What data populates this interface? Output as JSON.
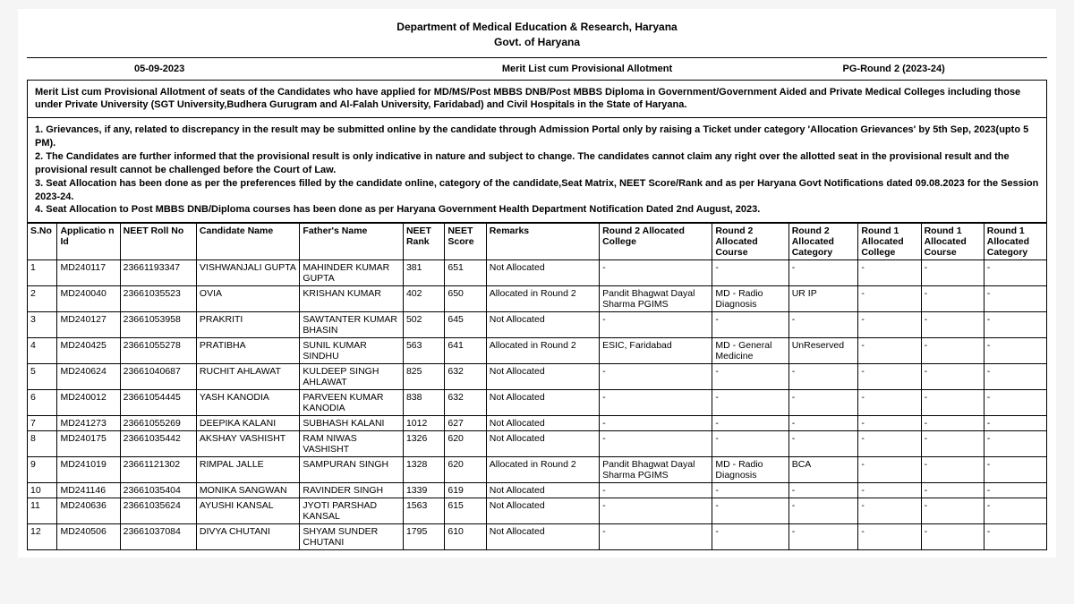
{
  "header": {
    "dept": "Department of Medical Education & Research, Haryana",
    "govt": "Govt. of Haryana"
  },
  "meta": {
    "date": "05-09-2023",
    "title": "Merit List cum Provisional Allotment",
    "round": "PG-Round 2 (2023-24)"
  },
  "intro": "Merit List cum Provisional Allotment of seats of the Candidates who have applied for MD/MS/Post MBBS DNB/Post MBBS Diploma in Government/Government Aided and Private Medical Colleges including those under Private University (SGT University,Budhera Gurugram and Al-Falah University, Faridabad) and Civil Hospitals in the State of Haryana.",
  "notes": {
    "n1": "1. Grievances, if any, related to discrepancy in the result may be submitted online by the candidate through Admission Portal only by raising a Ticket under category 'Allocation Grievances' by 5th Sep, 2023(upto 5 PM).",
    "n2": "2. The Candidates are further informed that the provisional result is only indicative in nature and subject to change. The candidates cannot claim any right over the allotted seat in the provisional result and the provisional result cannot be challenged before the Court of Law.",
    "n3": "3. Seat Allocation has been done as per the preferences filled by the candidate online, category of the candidate,Seat Matrix, NEET Score/Rank and as per Haryana Govt Notifications dated 09.08.2023 for the Session 2023-24.",
    "n4": "4. Seat Allocation to Post MBBS DNB/Diploma courses has been done as per Haryana Government Health Department Notification Dated 2nd August, 2023."
  },
  "columns": {
    "sno": "S.No",
    "app": "Applicatio n Id",
    "roll": "NEET Roll No",
    "name": "Candidate Name",
    "father": "Father's Name",
    "rank": "NEET Rank",
    "score": "NEET Score",
    "remarks": "Remarks",
    "r2college": "Round 2 Allocated College",
    "r2course": "Round 2 Allocated Course",
    "r2cat": "Round 2 Allocated Category",
    "r1college": "Round 1 Allocated College",
    "r1course": "Round 1 Allocated Course",
    "r1cat": "Round 1 Allocated Category"
  },
  "rows": [
    {
      "sno": "1",
      "app": "MD240117",
      "roll": "23661193347",
      "name": "VISHWANJALI GUPTA",
      "father": "MAHINDER KUMAR GUPTA",
      "rank": "381",
      "score": "651",
      "remarks": "Not Allocated",
      "r2col": "-",
      "r2course": "-",
      "r2cat": "-",
      "r1col": "-",
      "r1course": "-",
      "r1cat": "-"
    },
    {
      "sno": "2",
      "app": "MD240040",
      "roll": "23661035523",
      "name": "OVIA",
      "father": "KRISHAN KUMAR",
      "rank": "402",
      "score": "650",
      "remarks": "Allocated in Round 2",
      "r2col": "Pandit Bhagwat Dayal Sharma PGIMS",
      "r2course": "MD - Radio Diagnosis",
      "r2cat": "UR IP",
      "r1col": "-",
      "r1course": "-",
      "r1cat": "-"
    },
    {
      "sno": "3",
      "app": "MD240127",
      "roll": "23661053958",
      "name": "PRAKRITI",
      "father": "SAWTANTER KUMAR BHASIN",
      "rank": "502",
      "score": "645",
      "remarks": "Not Allocated",
      "r2col": "-",
      "r2course": "-",
      "r2cat": "-",
      "r1col": "-",
      "r1course": "-",
      "r1cat": "-"
    },
    {
      "sno": "4",
      "app": "MD240425",
      "roll": "23661055278",
      "name": "PRATIBHA",
      "father": "SUNIL KUMAR SINDHU",
      "rank": "563",
      "score": "641",
      "remarks": "Allocated in Round 2",
      "r2col": "ESIC, Faridabad",
      "r2course": "MD - General Medicine",
      "r2cat": "UnReserved",
      "r1col": "-",
      "r1course": "-",
      "r1cat": "-"
    },
    {
      "sno": "5",
      "app": "MD240624",
      "roll": "23661040687",
      "name": "RUCHIT AHLAWAT",
      "father": "KULDEEP SINGH AHLAWAT",
      "rank": "825",
      "score": "632",
      "remarks": "Not Allocated",
      "r2col": "-",
      "r2course": "-",
      "r2cat": "-",
      "r1col": "-",
      "r1course": "-",
      "r1cat": "-"
    },
    {
      "sno": "6",
      "app": "MD240012",
      "roll": "23661054445",
      "name": "YASH KANODIA",
      "father": "PARVEEN KUMAR KANODIA",
      "rank": "838",
      "score": "632",
      "remarks": "Not Allocated",
      "r2col": "-",
      "r2course": "-",
      "r2cat": "-",
      "r1col": "-",
      "r1course": "-",
      "r1cat": "-"
    },
    {
      "sno": "7",
      "app": "MD241273",
      "roll": "23661055269",
      "name": "DEEPIKA KALANI",
      "father": "SUBHASH KALANI",
      "rank": "1012",
      "score": "627",
      "remarks": "Not Allocated",
      "r2col": "-",
      "r2course": "-",
      "r2cat": "-",
      "r1col": "-",
      "r1course": "-",
      "r1cat": "-"
    },
    {
      "sno": "8",
      "app": "MD240175",
      "roll": "23661035442",
      "name": "AKSHAY VASHISHT",
      "father": "RAM NIWAS VASHISHT",
      "rank": "1326",
      "score": "620",
      "remarks": "Not Allocated",
      "r2col": "-",
      "r2course": "-",
      "r2cat": "-",
      "r1col": "-",
      "r1course": "-",
      "r1cat": "-"
    },
    {
      "sno": "9",
      "app": "MD241019",
      "roll": "23661121302",
      "name": "RIMPAL JALLE",
      "father": "SAMPURAN SINGH",
      "rank": "1328",
      "score": "620",
      "remarks": "Allocated in Round 2",
      "r2col": "Pandit Bhagwat Dayal Sharma PGIMS",
      "r2course": "MD - Radio Diagnosis",
      "r2cat": "BCA",
      "r1col": "-",
      "r1course": "-",
      "r1cat": "-"
    },
    {
      "sno": "10",
      "app": "MD241146",
      "roll": "23661035404",
      "name": "MONIKA SANGWAN",
      "father": "RAVINDER SINGH",
      "rank": "1339",
      "score": "619",
      "remarks": "Not Allocated",
      "r2col": "-",
      "r2course": "-",
      "r2cat": "-",
      "r1col": "-",
      "r1course": "-",
      "r1cat": "-"
    },
    {
      "sno": "11",
      "app": "MD240636",
      "roll": "23661035624",
      "name": "AYUSHI KANSAL",
      "father": "JYOTI PARSHAD KANSAL",
      "rank": "1563",
      "score": "615",
      "remarks": "Not Allocated",
      "r2col": "-",
      "r2course": "-",
      "r2cat": "-",
      "r1col": "-",
      "r1course": "-",
      "r1cat": "-"
    },
    {
      "sno": "12",
      "app": "MD240506",
      "roll": "23661037084",
      "name": "DIVYA CHUTANI",
      "father": "SHYAM SUNDER CHUTANI",
      "rank": "1795",
      "score": "610",
      "remarks": "Not Allocated",
      "r2col": "-",
      "r2course": "-",
      "r2cat": "-",
      "r1col": "-",
      "r1course": "-",
      "r1cat": "-"
    }
  ]
}
